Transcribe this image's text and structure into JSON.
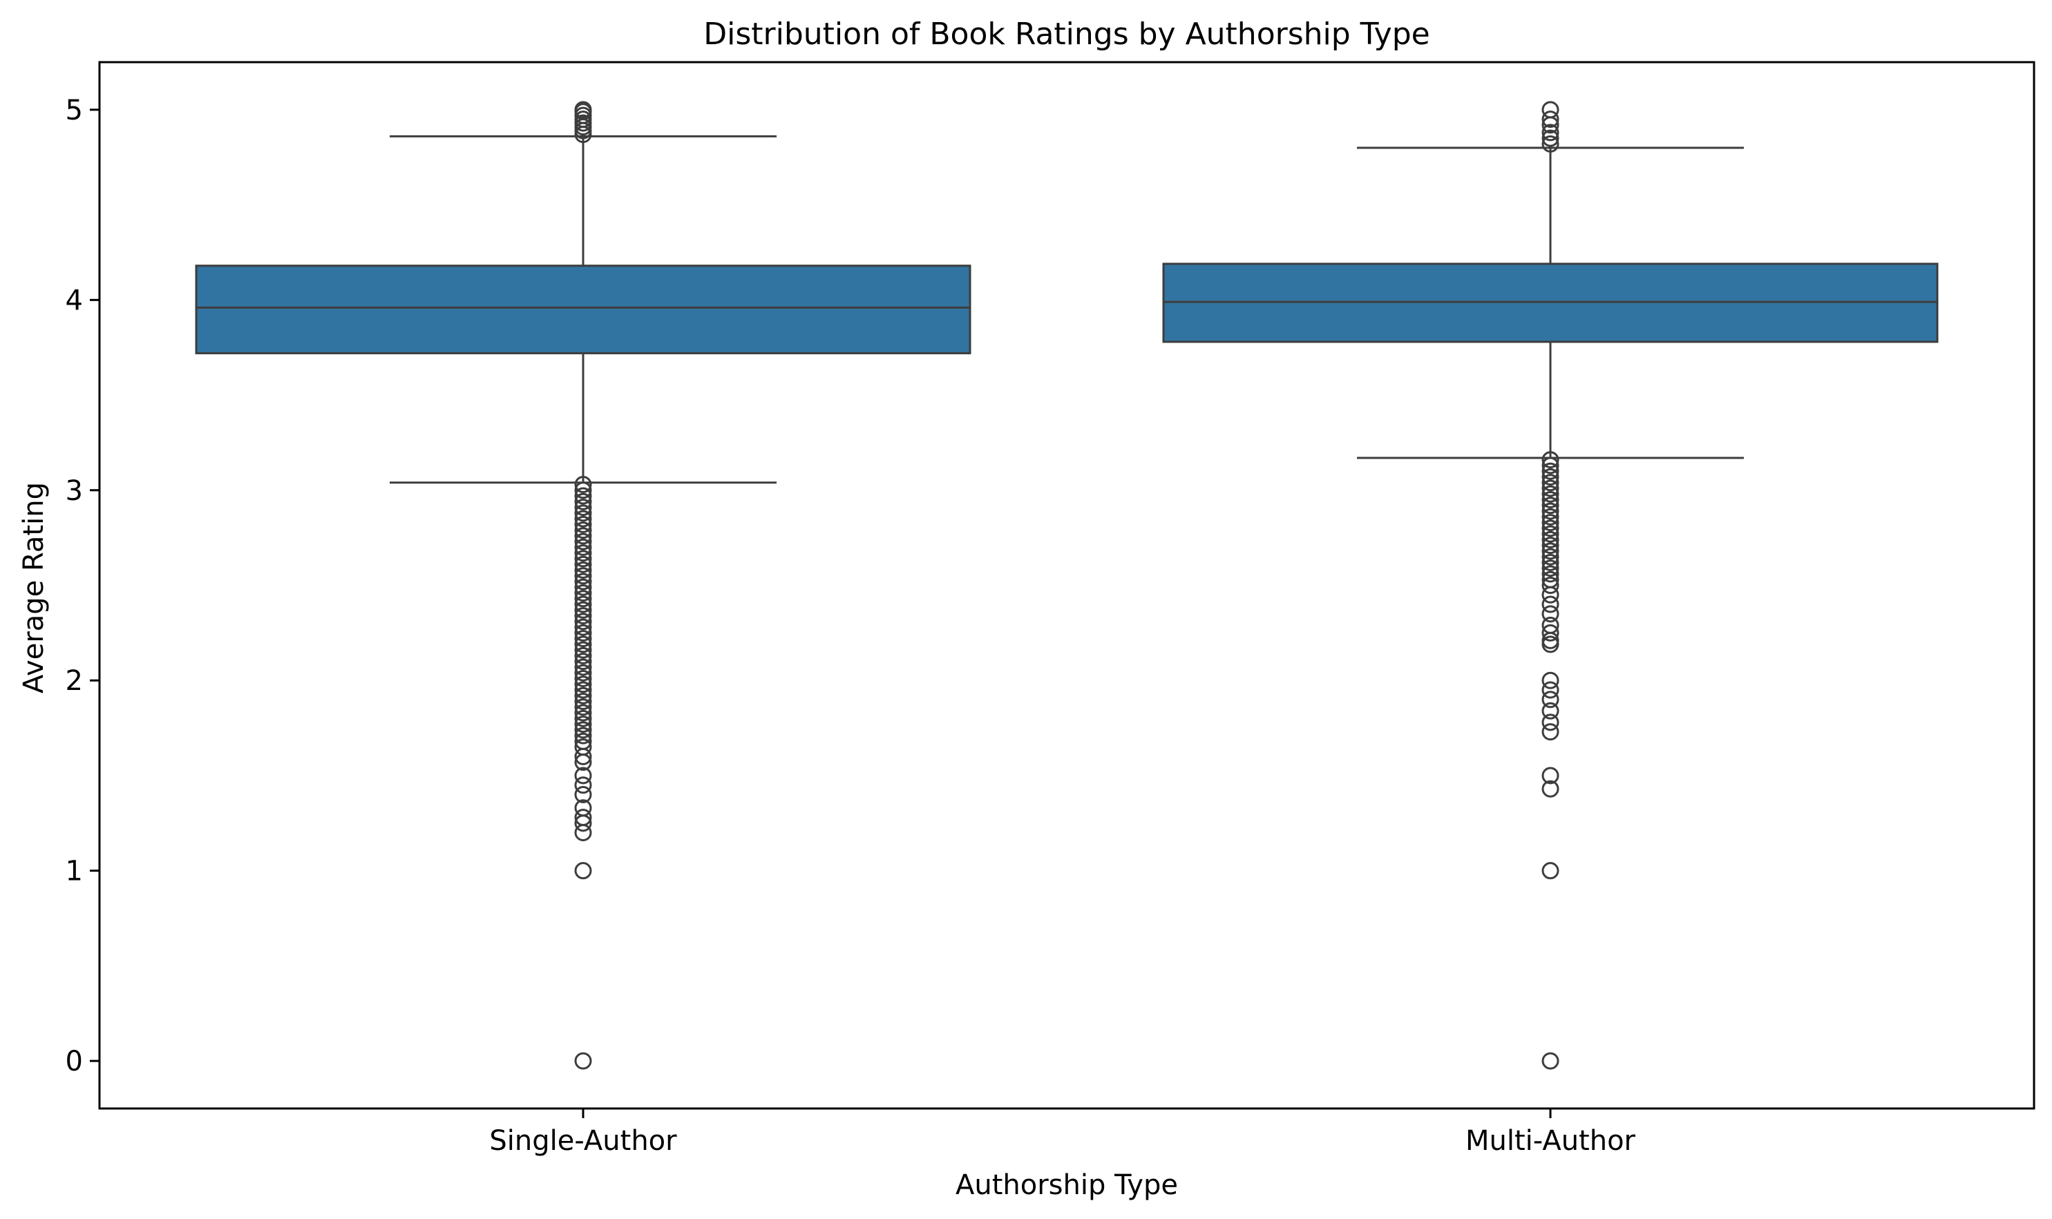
{
  "chart_data": {
    "type": "box",
    "title": "Distribution of Book Ratings by Authorship Type",
    "xlabel": "Authorship Type",
    "ylabel": "Average Rating",
    "ylim": [
      -0.25,
      5.25
    ],
    "yticks": [
      0,
      1,
      2,
      3,
      4,
      5
    ],
    "grid": false,
    "legend": "none",
    "categories": [
      "Single-Author",
      "Multi-Author"
    ],
    "box_color": "#3274a1",
    "line_color": "#3d3d3d",
    "series": [
      {
        "category": "Single-Author",
        "q1": 3.72,
        "median": 3.96,
        "q3": 4.18,
        "whisker_low": 3.04,
        "whisker_high": 4.86,
        "outliers": [
          5.0,
          4.99,
          4.97,
          4.95,
          4.93,
          4.91,
          4.89,
          4.87,
          3.03,
          3.0,
          2.97,
          2.94,
          2.91,
          2.88,
          2.85,
          2.82,
          2.79,
          2.76,
          2.73,
          2.7,
          2.67,
          2.64,
          2.61,
          2.58,
          2.55,
          2.52,
          2.49,
          2.46,
          2.43,
          2.4,
          2.37,
          2.34,
          2.31,
          2.28,
          2.25,
          2.22,
          2.19,
          2.16,
          2.13,
          2.1,
          2.07,
          2.04,
          2.01,
          1.98,
          1.95,
          1.92,
          1.89,
          1.86,
          1.83,
          1.8,
          1.77,
          1.74,
          1.71,
          1.68,
          1.65,
          1.6,
          1.57,
          1.5,
          1.45,
          1.4,
          1.33,
          1.28,
          1.25,
          1.2,
          1.0,
          0.0
        ]
      },
      {
        "category": "Multi-Author",
        "q1": 3.78,
        "median": 3.99,
        "q3": 4.19,
        "whisker_low": 3.17,
        "whisker_high": 4.8,
        "outliers": [
          5.0,
          4.95,
          4.92,
          4.88,
          4.85,
          4.82,
          3.16,
          3.13,
          3.1,
          3.07,
          3.04,
          3.01,
          2.98,
          2.95,
          2.92,
          2.89,
          2.86,
          2.83,
          2.8,
          2.77,
          2.74,
          2.71,
          2.68,
          2.65,
          2.62,
          2.59,
          2.56,
          2.53,
          2.5,
          2.45,
          2.4,
          2.35,
          2.29,
          2.25,
          2.21,
          2.19,
          2.0,
          1.95,
          1.9,
          1.84,
          1.78,
          1.73,
          1.5,
          1.43,
          1.0,
          0.0
        ]
      }
    ]
  }
}
